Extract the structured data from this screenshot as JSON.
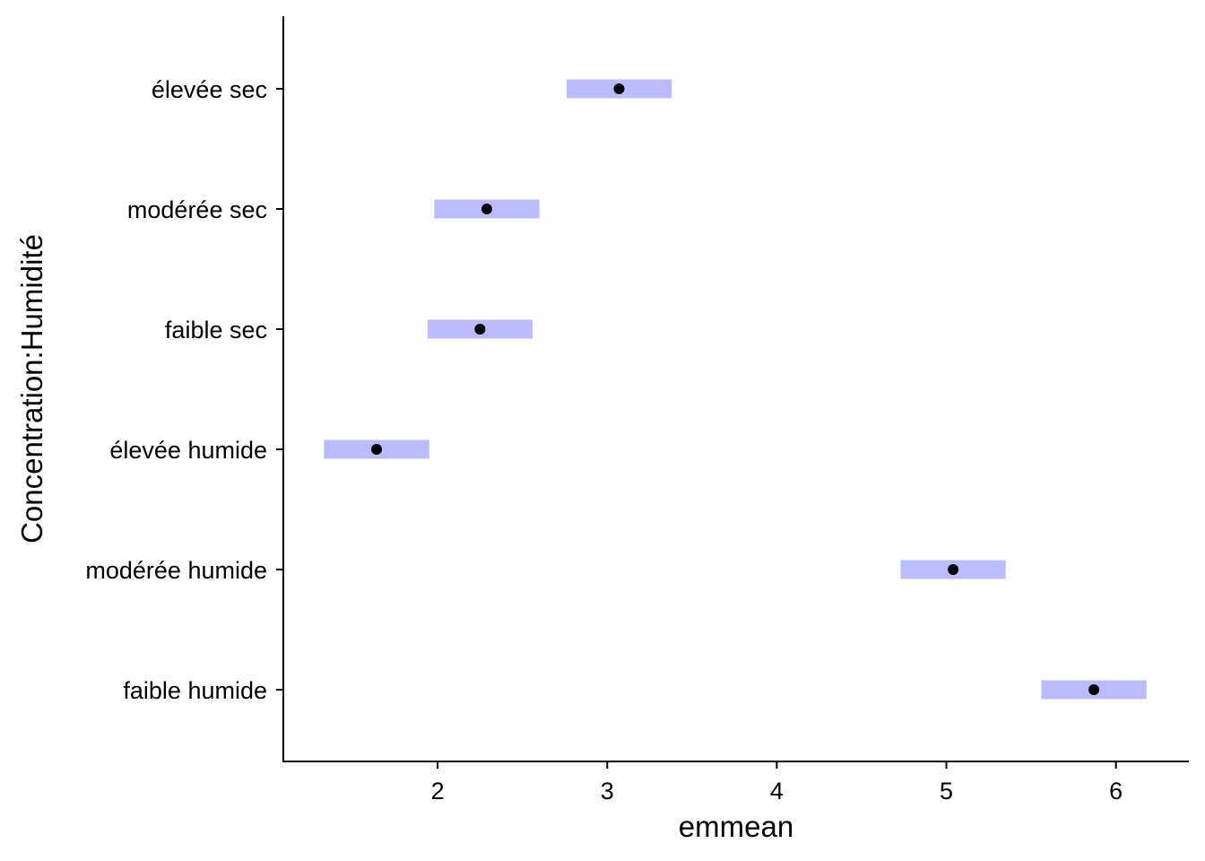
{
  "chart_data": {
    "type": "scatter",
    "xlabel": "emmean",
    "ylabel": "Concentration:Humidité",
    "xlim": [
      1.09,
      6.43
    ],
    "x_ticks": [
      2,
      3,
      4,
      5,
      6
    ],
    "categories": [
      "faible humide",
      "modérée humide",
      "élevée humide",
      "faible sec",
      "modérée sec",
      "élevée sec"
    ],
    "series": [
      {
        "estimates": [
          5.87,
          5.04,
          1.64,
          2.25,
          2.29,
          3.07
        ],
        "ci_lower": [
          5.56,
          4.73,
          1.33,
          1.94,
          1.98,
          2.76
        ],
        "ci_upper": [
          6.18,
          5.35,
          1.95,
          2.56,
          2.6,
          3.38
        ]
      }
    ],
    "colors": {
      "interval": "#bbbbff",
      "point": "#000000",
      "axis": "#000000"
    },
    "grid": false,
    "legend": "none"
  }
}
